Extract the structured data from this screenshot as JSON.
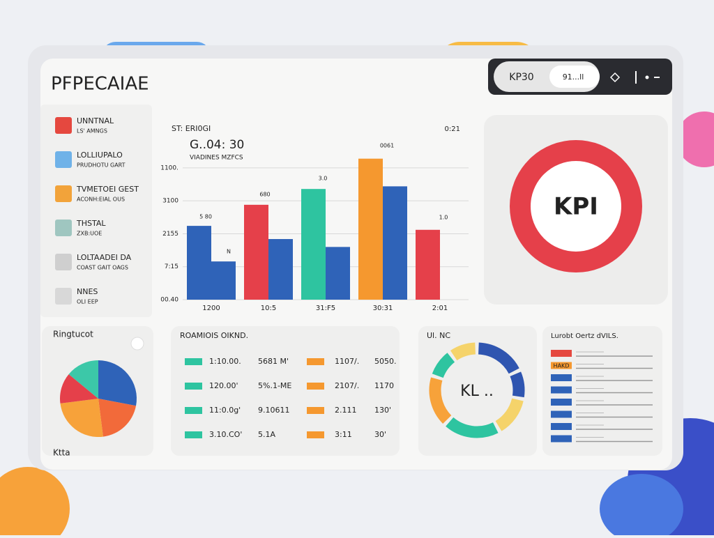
{
  "header": {
    "title": "PFPECAIAE",
    "pill": "KP30",
    "search": "91...ll"
  },
  "sidebar": {
    "items": [
      {
        "title": "UNNTNAL",
        "subtitle": "LS' AMNGS",
        "color": "#e5483f"
      },
      {
        "title": "LOLLIUPALO",
        "subtitle": "PRUDHOTU GART",
        "color": "#6fb2e8"
      },
      {
        "title": "TVMETOEI GEST",
        "subtitle": "ACONH:EIAL OUS",
        "color": "#f2a33a"
      },
      {
        "title": "THSTAL",
        "subtitle": "ZXB:UOE",
        "color": "#9fc6c0"
      },
      {
        "title": "LOLTAADEI DA",
        "subtitle": "COAST GAIT OAGS",
        "color": "#cfcfcf"
      },
      {
        "title": "NNES",
        "subtitle": "OLI EEP",
        "color": "#d8d8d8"
      }
    ]
  },
  "chart_data": [
    {
      "type": "bar",
      "title": "ST: ERI0GI",
      "corner_label": "0:21",
      "subtitle": "G..04: 30",
      "caption": "VIADINES MZFCS",
      "categories": [
        "1200",
        "10:5",
        "31:F5",
        "30:31",
        "2:01"
      ],
      "series": [
        {
          "colors": [
            "#2f63b8",
            "#e5404a",
            "#2ec4a0",
            "#f5982f",
            "#e5404a"
          ],
          "values": [
            56,
            72,
            84,
            107,
            53
          ]
        },
        {
          "color": "#2f63b8",
          "values": [
            29,
            46,
            40,
            86,
            null
          ]
        }
      ],
      "ylim": [
        0,
        110
      ],
      "yticks": [
        0,
        25,
        50,
        75,
        100
      ],
      "grid": true,
      "axis_texts": [
        "00.40",
        "7:15",
        "2155",
        "3100",
        "1100."
      ],
      "annotations": [
        "5 80",
        "N",
        "680",
        "3.0",
        "0061",
        "1.0"
      ]
    },
    {
      "type": "ring",
      "label": "KPI",
      "color": "#e5404a"
    },
    {
      "type": "pie",
      "title": "Ringtucot",
      "footer": "Ktta",
      "values": [
        28,
        20,
        25,
        13,
        14
      ],
      "colors": [
        "#2f63b8",
        "#f26a3a",
        "#f7a23a",
        "#e5404a",
        "#3cc8a8"
      ]
    },
    {
      "type": "donut",
      "title": "Ul. NC",
      "label": "KL ..",
      "values": [
        18,
        10,
        14,
        20,
        18,
        10,
        10
      ],
      "colors": [
        "#2f55b0",
        "#2f55b0",
        "#f5d36a",
        "#2ec4a0",
        "#f7a23a",
        "#2ec4a0",
        "#f5d36a"
      ]
    }
  ],
  "table": {
    "title": "ROAMIOIS OIKND.",
    "rows": [
      [
        "1:10.00.",
        "5681 M'",
        "1107/.",
        "5050."
      ],
      [
        "120.00'",
        "5%.1-ME",
        "2107/.",
        "1170"
      ],
      [
        "11:0.0g'",
        "9.10611",
        "2.111",
        "130'"
      ],
      [
        "3.10.CO'",
        "5.1A",
        "3:11",
        "30'"
      ]
    ]
  },
  "legend_list": {
    "title": "Lurobt Oertz dVILS.",
    "tag": "HAKD",
    "colors": [
      "#e5483f",
      "#f5982f",
      "#2f63b8",
      "#2f63b8",
      "#2f63b8",
      "#2f63b8",
      "#2f63b8",
      "#2f63b8"
    ]
  }
}
